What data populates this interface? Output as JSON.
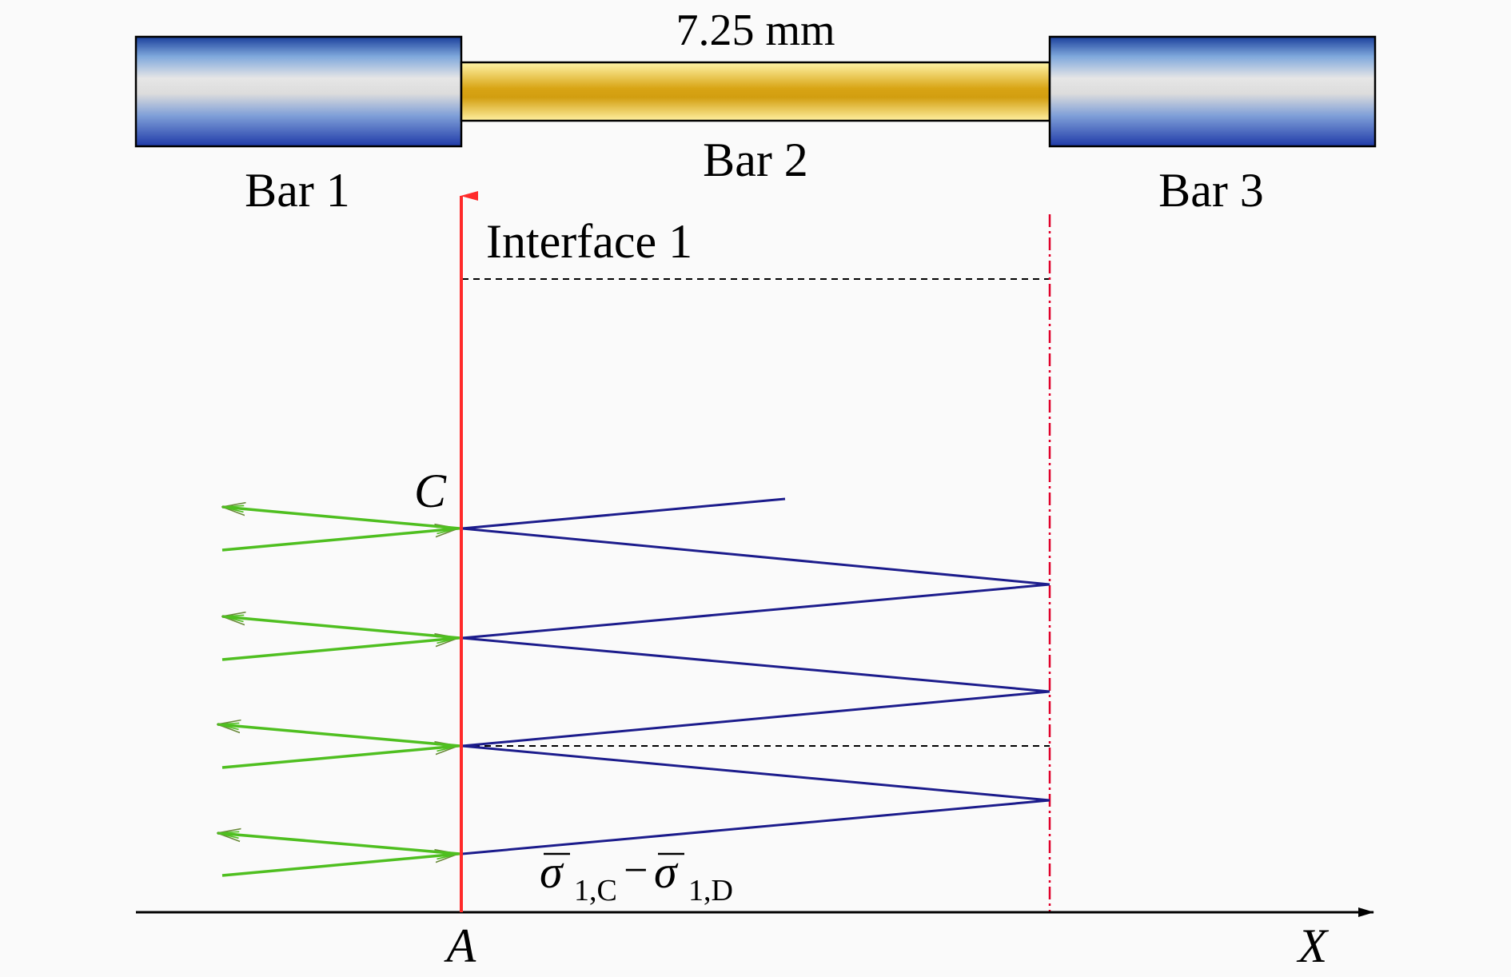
{
  "bars": {
    "bar1_label": "Bar 1",
    "bar2_label": "Bar 2",
    "bar3_label": "Bar 3",
    "length_label": "7.25 mm"
  },
  "annotations": {
    "interface_label": "Interface 1",
    "point_c": "C",
    "point_a": "A",
    "axis_x": "X",
    "sigma_symbol": "σ",
    "sigma_sub_c": "1,C",
    "sigma_sub_d": "1,D",
    "minus": "−"
  },
  "colors": {
    "interface_line": "#ff2a2a",
    "boundary_line": "#e0002a",
    "wave_lines": "#1c1c8c",
    "transmitted_arrows": "#3fb51c",
    "steel_bar": "#1f4fb0",
    "specimen_bar": "#d4a010",
    "axis": "#000000"
  }
}
